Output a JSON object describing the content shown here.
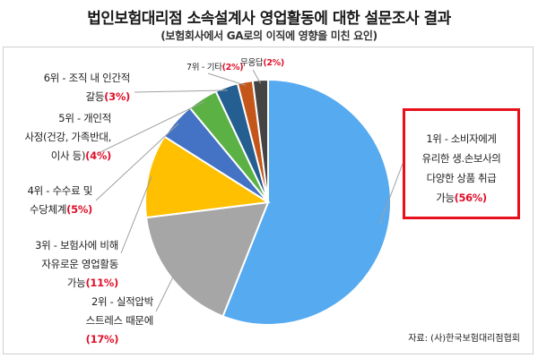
{
  "page": {
    "title": "법인보험대리점 소속설계사 영업활동에 대한 설문조사 결과",
    "subtitle": "(보험회사에서 GA로의 이직에 영향을 미친 요인)",
    "source": "자료: (사)한국보험대리점협회"
  },
  "chart_data": {
    "type": "pie",
    "title": "법인보험대리점 소속설계사 영업활동에 대한 설문조사 결과",
    "subtitle": "(보험회사에서 GA로의 이직에 영향을 미친 요인)",
    "unit": "%",
    "slices": [
      {
        "label_lines": [
          "1위 - 소비자에게",
          "유리한 생.손보사의",
          "다양한 상품 취급",
          "가능"
        ],
        "value": 56,
        "value_text": "(56%)",
        "color": "#55aaf0"
      },
      {
        "label_lines": [
          "2위 - 실적압박",
          "스트레스 때문에",
          ""
        ],
        "value": 17,
        "value_text": "(17%)",
        "color": "#a6a6a6"
      },
      {
        "label_lines": [
          "3위 - 보험사에 비해",
          "자유로운 영업활동",
          "가능"
        ],
        "value": 11,
        "value_text": "(11%)",
        "color": "#fec000"
      },
      {
        "label_lines": [
          "4위 - 수수료 및",
          "수당체계"
        ],
        "value": 5,
        "value_text": "(5%)",
        "color": "#4472c4"
      },
      {
        "label_lines": [
          "5위 - 개인적",
          "사정(건강, 가족반대,",
          "이사 등)"
        ],
        "value": 4,
        "value_text": "(4%)",
        "color": "#5cb145"
      },
      {
        "label_lines": [
          "6위 - 조직 내 인간적",
          "갈등"
        ],
        "value": 3,
        "value_text": "(3%)",
        "color": "#255e91"
      },
      {
        "label_lines": [
          "7위 - 기타"
        ],
        "value": 2,
        "value_text": "(2%)",
        "color": "#c4561a"
      },
      {
        "label_lines": [
          "무응답"
        ],
        "value": 2,
        "value_text": "(2%)",
        "color": "#444444"
      }
    ]
  }
}
